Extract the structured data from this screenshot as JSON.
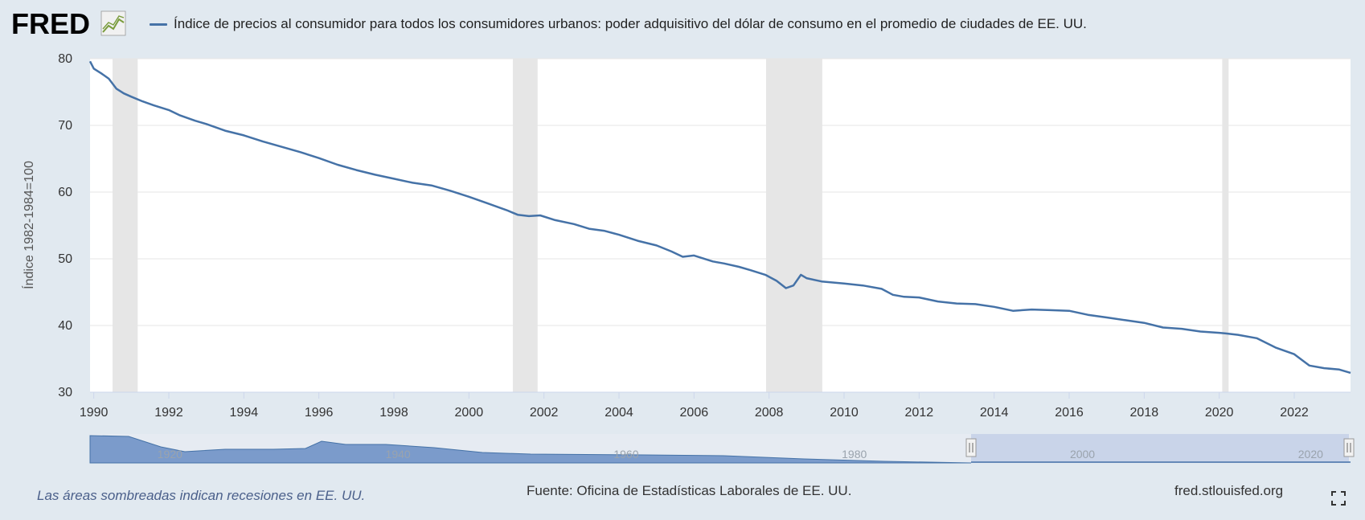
{
  "header": {
    "logo_text": "FRED",
    "legend_label": "Índice de precios al consumidor para todos los consumidores urbanos: poder adquisitivo del dólar de consumo en el promedio de ciudades de EE. UU."
  },
  "footer": {
    "recession_note": "Las áreas sombreadas indican recesiones en EE. UU.",
    "source": "Fuente: Oficina de Estadísticas Laborales de EE. UU.",
    "site": "fred.stlouisfed.org"
  },
  "colors": {
    "series": "#4572a7",
    "recession": "#e6e6e6",
    "page_bg": "#e1e9f0",
    "navigator_selection": "#bccae5"
  },
  "icons": {
    "fullscreen": "expand-icon",
    "logo_graph": "line-graph-icon"
  },
  "chart_data": {
    "type": "line",
    "title": "",
    "xlabel": "",
    "ylabel": "Índice 1982-1984=100",
    "xlim": [
      1989.9,
      2023.5
    ],
    "ylim": [
      30,
      80
    ],
    "yticks": [
      30,
      40,
      50,
      60,
      70,
      80
    ],
    "xticks": [
      "1990",
      "1992",
      "1994",
      "1996",
      "1998",
      "2000",
      "2002",
      "2004",
      "2006",
      "2008",
      "2010",
      "2012",
      "2014",
      "2016",
      "2018",
      "2020",
      "2022"
    ],
    "grid": true,
    "recessions": [
      [
        1990.5,
        1991.17
      ],
      [
        2001.17,
        2001.83
      ],
      [
        2007.92,
        2009.42
      ],
      [
        2020.08,
        2020.25
      ]
    ],
    "series": [
      {
        "x": [
          1989.9,
          1990.0,
          1990.2,
          1990.4,
          1990.6,
          1990.8,
          1991.0,
          1991.3,
          1991.6,
          1992.0,
          1992.3,
          1992.7,
          1993.0,
          1993.5,
          1994.0,
          1994.5,
          1995.0,
          1995.5,
          1996.0,
          1996.5,
          1997.0,
          1997.5,
          1998.0,
          1998.5,
          1999.0,
          1999.5,
          2000.0,
          2000.5,
          2001.0,
          2001.3,
          2001.6,
          2001.9,
          2002.3,
          2002.8,
          2003.2,
          2003.6,
          2004.0,
          2004.5,
          2005.0,
          2005.4,
          2005.7,
          2006.0,
          2006.5,
          2006.8,
          2007.2,
          2007.5,
          2007.9,
          2008.2,
          2008.45,
          2008.65,
          2008.85,
          2009.0,
          2009.4,
          2010.0,
          2010.5,
          2011.0,
          2011.3,
          2011.6,
          2012.0,
          2012.5,
          2013.0,
          2013.5,
          2014.0,
          2014.5,
          2015.0,
          2015.5,
          2016.0,
          2016.5,
          2017.0,
          2017.5,
          2018.0,
          2018.5,
          2019.0,
          2019.5,
          2020.0,
          2020.2,
          2020.5,
          2021.0,
          2021.5,
          2022.0,
          2022.4,
          2022.8,
          2023.2,
          2023.5
        ],
        "values": [
          79.6,
          78.5,
          77.8,
          77.0,
          75.5,
          74.8,
          74.3,
          73.6,
          73.0,
          72.3,
          71.5,
          70.7,
          70.2,
          69.2,
          68.5,
          67.6,
          66.8,
          66.0,
          65.1,
          64.1,
          63.3,
          62.6,
          62.0,
          61.4,
          61.0,
          60.2,
          59.3,
          58.3,
          57.3,
          56.6,
          56.4,
          56.5,
          55.8,
          55.2,
          54.5,
          54.2,
          53.6,
          52.7,
          52.0,
          51.1,
          50.3,
          50.5,
          49.6,
          49.3,
          48.8,
          48.3,
          47.6,
          46.7,
          45.6,
          46.0,
          47.6,
          47.1,
          46.6,
          46.3,
          46.0,
          45.5,
          44.6,
          44.3,
          44.2,
          43.6,
          43.3,
          43.2,
          42.8,
          42.2,
          42.4,
          42.3,
          42.2,
          41.6,
          41.2,
          40.8,
          40.4,
          39.7,
          39.5,
          39.1,
          38.9,
          38.8,
          38.6,
          38.1,
          36.7,
          35.7,
          34.0,
          33.6,
          33.4,
          32.9
        ]
      }
    ],
    "navigator": {
      "xticks": [
        "1920",
        "1940",
        "1960",
        "1980",
        "2000",
        "2020"
      ]
    }
  }
}
